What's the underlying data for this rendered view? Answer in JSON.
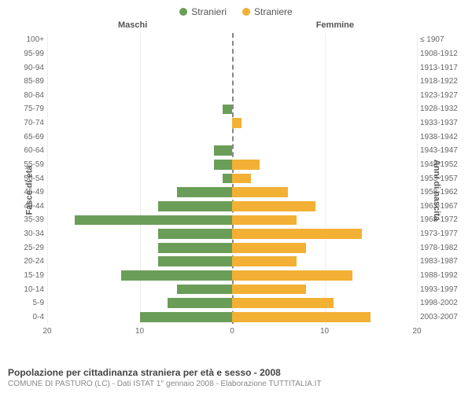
{
  "type": "population-pyramid",
  "legend": {
    "male": {
      "label": "Stranieri",
      "color": "#6a9e58"
    },
    "female": {
      "label": "Straniere",
      "color": "#f2b134"
    }
  },
  "headers": {
    "left": "Maschi",
    "right": "Femmine"
  },
  "axis_titles": {
    "left": "Fasce di età",
    "right": "Anni di nascita"
  },
  "xlim": 20,
  "xticks_left": [
    20,
    10,
    0
  ],
  "xticks_right": [
    10,
    20
  ],
  "grid_color": "#eeeeee",
  "center_line_color": "#888888",
  "background_color": "#ffffff",
  "label_color": "#666666",
  "rows": [
    {
      "age": "100+",
      "birth": "≤ 1907",
      "m": 0,
      "f": 0
    },
    {
      "age": "95-99",
      "birth": "1908-1912",
      "m": 0,
      "f": 0
    },
    {
      "age": "90-94",
      "birth": "1913-1917",
      "m": 0,
      "f": 0
    },
    {
      "age": "85-89",
      "birth": "1918-1922",
      "m": 0,
      "f": 0
    },
    {
      "age": "80-84",
      "birth": "1923-1927",
      "m": 0,
      "f": 0
    },
    {
      "age": "75-79",
      "birth": "1928-1932",
      "m": 1,
      "f": 0
    },
    {
      "age": "70-74",
      "birth": "1933-1937",
      "m": 0,
      "f": 1
    },
    {
      "age": "65-69",
      "birth": "1938-1942",
      "m": 0,
      "f": 0
    },
    {
      "age": "60-64",
      "birth": "1943-1947",
      "m": 2,
      "f": 0
    },
    {
      "age": "55-59",
      "birth": "1948-1952",
      "m": 2,
      "f": 3
    },
    {
      "age": "50-54",
      "birth": "1953-1957",
      "m": 1,
      "f": 2
    },
    {
      "age": "45-49",
      "birth": "1958-1962",
      "m": 6,
      "f": 6
    },
    {
      "age": "40-44",
      "birth": "1963-1967",
      "m": 8,
      "f": 9
    },
    {
      "age": "35-39",
      "birth": "1968-1972",
      "m": 17,
      "f": 7
    },
    {
      "age": "30-34",
      "birth": "1973-1977",
      "m": 8,
      "f": 14
    },
    {
      "age": "25-29",
      "birth": "1978-1982",
      "m": 8,
      "f": 8
    },
    {
      "age": "20-24",
      "birth": "1983-1987",
      "m": 8,
      "f": 7
    },
    {
      "age": "15-19",
      "birth": "1988-1992",
      "m": 12,
      "f": 13
    },
    {
      "age": "10-14",
      "birth": "1993-1997",
      "m": 6,
      "f": 8
    },
    {
      "age": "5-9",
      "birth": "1998-2002",
      "m": 7,
      "f": 11
    },
    {
      "age": "0-4",
      "birth": "2003-2007",
      "m": 10,
      "f": 15
    }
  ],
  "title": "Popolazione per cittadinanza straniera per età e sesso - 2008",
  "subtitle": "COMUNE DI PASTURO (LC) - Dati ISTAT 1° gennaio 2008 - Elaborazione TUTTITALIA.IT"
}
